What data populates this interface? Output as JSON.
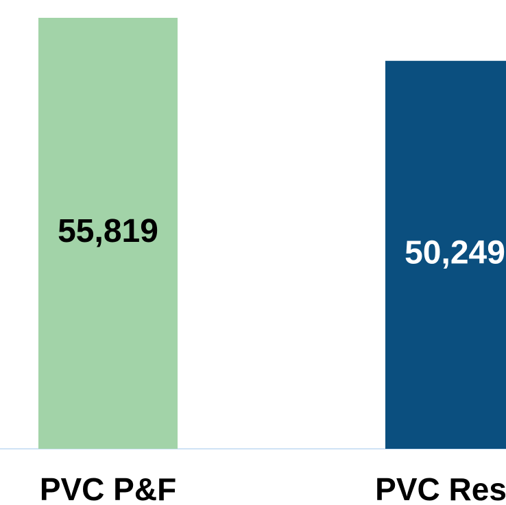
{
  "chart_data": {
    "type": "bar",
    "categories": [
      "PVC P&F",
      "PVC Resin"
    ],
    "values": [
      55819,
      50249
    ],
    "value_labels": [
      "55,819",
      "50,249"
    ],
    "colors": [
      "#a2d3a8",
      "#0b4f7f"
    ],
    "label_colors": [
      "#000000",
      "#ffffff"
    ]
  }
}
